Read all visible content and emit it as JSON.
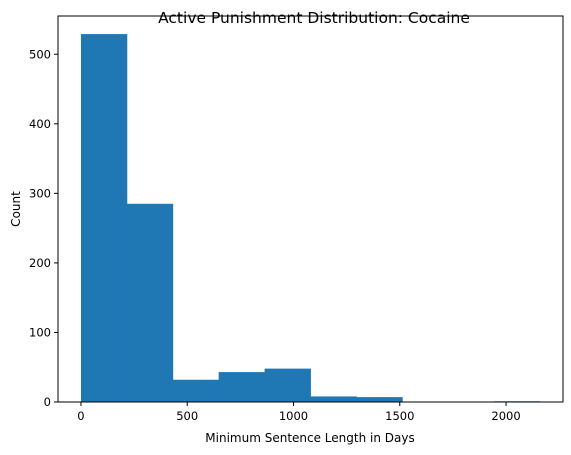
{
  "chart_data": {
    "type": "bar",
    "title": "Active Punishment Distribution: Cocaine",
    "xlabel": "Minimum Sentence Length in Days",
    "ylabel": "Count",
    "bin_edges": [
      0,
      216,
      432,
      648,
      864,
      1080,
      1296,
      1512,
      1728,
      1944,
      2160
    ],
    "values": [
      529,
      285,
      32,
      43,
      48,
      8,
      7,
      0,
      0,
      1
    ],
    "xlim": [
      -108,
      2268
    ],
    "ylim": [
      0,
      555
    ],
    "xticks": [
      0,
      500,
      1000,
      1500,
      2000
    ],
    "yticks": [
      0,
      100,
      200,
      300,
      400,
      500
    ],
    "bar_color": "#1f77b4",
    "grid": false
  }
}
